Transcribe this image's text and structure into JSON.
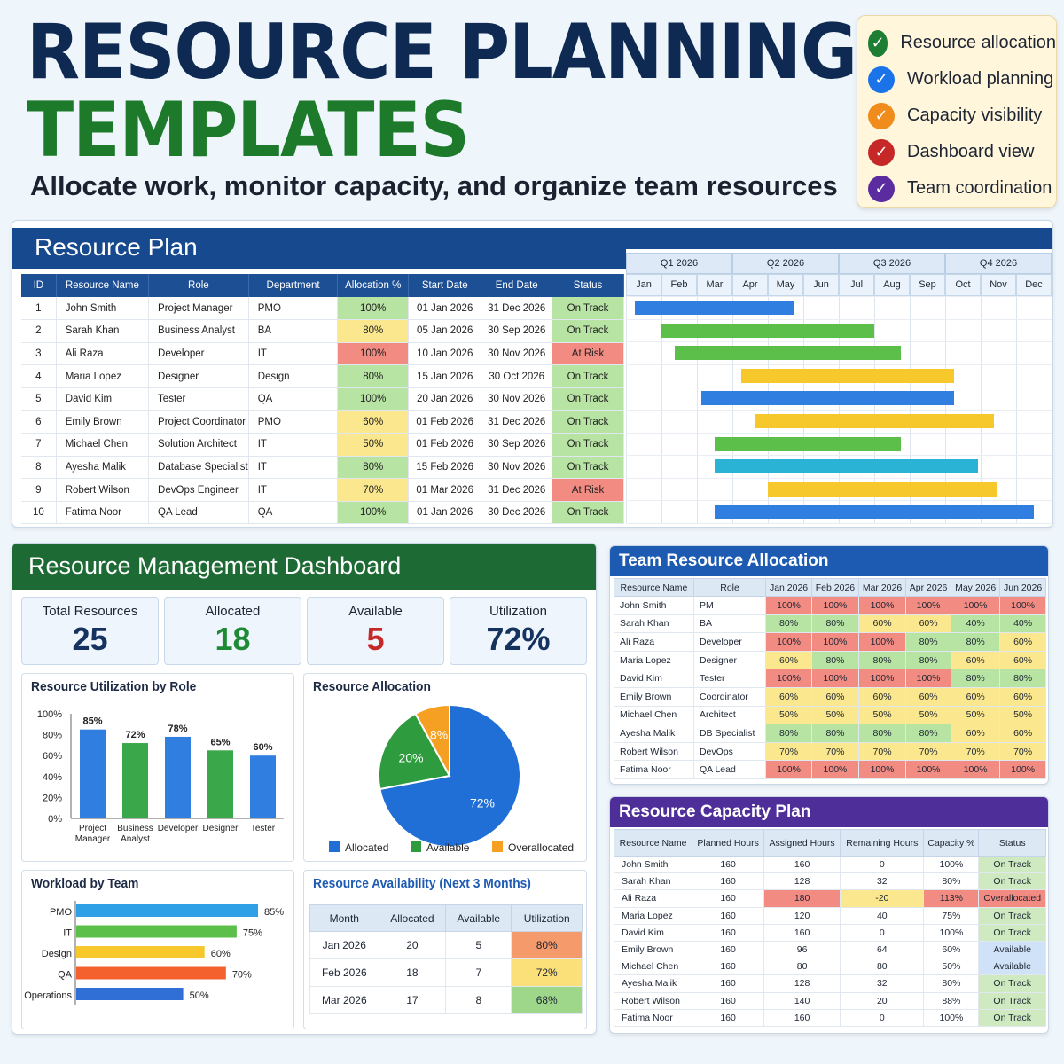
{
  "header": {
    "title1": "RESOURCE PLANNING",
    "title2": "TEMPLATES",
    "subtitle": "Allocate work, monitor capacity, and organize team resources"
  },
  "features": [
    {
      "label": "Resource allocation",
      "color": "#1e7e34"
    },
    {
      "label": "Workload planning",
      "color": "#1a73e8"
    },
    {
      "label": "Capacity visibility",
      "color": "#f08c1c"
    },
    {
      "label": "Dashboard view",
      "color": "#c62828"
    },
    {
      "label": "Team coordination",
      "color": "#5b2ca0"
    }
  ],
  "resource_plan": {
    "title": "Resource Plan",
    "columns": [
      "ID",
      "Resource Name",
      "Role",
      "Department",
      "Allocation %",
      "Start Date",
      "End Date",
      "Status"
    ],
    "rows": [
      {
        "id": "1",
        "name": "John Smith",
        "role": "Project Manager",
        "dept": "PMO",
        "alloc": "100%",
        "ac": "g",
        "start": "01 Jan 2026",
        "end": "31 Dec 2026",
        "status": "On Track",
        "sc": "g",
        "bar": {
          "s": 0,
          "e": 6,
          "color": "#2f7ee0"
        }
      },
      {
        "id": "2",
        "name": "Sarah Khan",
        "role": "Business Analyst",
        "dept": "BA",
        "alloc": "80%",
        "ac": "y",
        "start": "05 Jan 2026",
        "end": "30 Sep 2026",
        "status": "On Track",
        "sc": "g",
        "bar": {
          "s": 1,
          "e": 9,
          "color": "#5cbf4a"
        }
      },
      {
        "id": "3",
        "name": "Ali Raza",
        "role": "Developer",
        "dept": "IT",
        "alloc": "100%",
        "ac": "r",
        "start": "10 Jan 2026",
        "end": "30 Nov 2026",
        "status": "At Risk",
        "sc": "r",
        "bar": {
          "s": 1.5,
          "e": 10,
          "color": "#5cbf4a"
        }
      },
      {
        "id": "4",
        "name": "Maria Lopez",
        "role": "Designer",
        "dept": "Design",
        "alloc": "80%",
        "ac": "g",
        "start": "15 Jan 2026",
        "end": "30 Oct 2026",
        "status": "On Track",
        "sc": "g",
        "bar": {
          "s": 4,
          "e": 12,
          "color": "#f6c82c"
        }
      },
      {
        "id": "5",
        "name": "David Kim",
        "role": "Tester",
        "dept": "QA",
        "alloc": "100%",
        "ac": "g",
        "start": "20 Jan 2026",
        "end": "30 Nov 2026",
        "status": "On Track",
        "sc": "g",
        "bar": {
          "s": 2.5,
          "e": 12,
          "color": "#2f7ee0"
        }
      },
      {
        "id": "6",
        "name": "Emily Brown",
        "role": "Project Coordinator",
        "dept": "PMO",
        "alloc": "60%",
        "ac": "y",
        "start": "01 Feb 2026",
        "end": "31 Dec 2026",
        "status": "On Track",
        "sc": "g",
        "bar": {
          "s": 4.5,
          "e": 13.5,
          "color": "#f6c82c"
        }
      },
      {
        "id": "7",
        "name": "Michael Chen",
        "role": "Solution Architect",
        "dept": "IT",
        "alloc": "50%",
        "ac": "y",
        "start": "01 Feb 2026",
        "end": "30 Sep 2026",
        "status": "On Track",
        "sc": "g",
        "bar": {
          "s": 3,
          "e": 10,
          "color": "#5cbf4a"
        }
      },
      {
        "id": "8",
        "name": "Ayesha Malik",
        "role": "Database Specialist",
        "dept": "IT",
        "alloc": "80%",
        "ac": "g",
        "start": "15 Feb 2026",
        "end": "30 Nov 2026",
        "status": "On Track",
        "sc": "g",
        "bar": {
          "s": 3,
          "e": 12.9,
          "color": "#2bb3d6"
        }
      },
      {
        "id": "9",
        "name": "Robert Wilson",
        "role": "DevOps Engineer",
        "dept": "IT",
        "alloc": "70%",
        "ac": "y",
        "start": "01 Mar 2026",
        "end": "31 Dec 2026",
        "status": "At Risk",
        "sc": "r",
        "bar": {
          "s": 5,
          "e": 13.6,
          "color": "#f6c82c"
        }
      },
      {
        "id": "10",
        "name": "Fatima Noor",
        "role": "QA Lead",
        "dept": "QA",
        "alloc": "100%",
        "ac": "g",
        "start": "01 Jan 2026",
        "end": "30 Dec 2026",
        "status": "On Track",
        "sc": "g",
        "bar": {
          "s": 3,
          "e": 15,
          "color": "#2f7ee0"
        }
      }
    ],
    "quarters": [
      "Q1 2026",
      "Q2 2026",
      "Q3 2026",
      "Q4 2026"
    ],
    "months": [
      "Jan",
      "Feb",
      "Mar",
      "Apr",
      "May",
      "Jun",
      "Jul",
      "Aug",
      "Sep",
      "Oct",
      "Nov",
      "Dec"
    ]
  },
  "dashboard": {
    "title": "Resource Management Dashboard",
    "kpis": [
      {
        "label": "Total Resources",
        "value": "25",
        "color": "#16335f"
      },
      {
        "label": "Allocated",
        "value": "18",
        "color": "#1f8a35"
      },
      {
        "label": "Available",
        "value": "5",
        "color": "#c62828"
      },
      {
        "label": "Utilization",
        "value": "72%",
        "color": "#16335f"
      }
    ],
    "util_title": "Resource Utilization by Role",
    "alloc_title": "Resource Allocation",
    "workload_title": "Workload by Team",
    "avail_title": "Resource Availability (Next 3 Months)",
    "avail_columns": [
      "Month",
      "Allocated",
      "Available",
      "Utilization"
    ],
    "avail_rows": [
      {
        "month": "Jan 2026",
        "allocated": "20",
        "available": "5",
        "util": "80%",
        "color": "#f59a6a"
      },
      {
        "month": "Feb 2026",
        "allocated": "18",
        "available": "7",
        "util": "72%",
        "color": "#fbe07a"
      },
      {
        "month": "Mar 2026",
        "allocated": "17",
        "available": "8",
        "util": "68%",
        "color": "#9fd78a"
      }
    ]
  },
  "chart_data": [
    {
      "type": "bar",
      "title": "Resource Utilization by Role",
      "categories": [
        "Project Manager",
        "Business Analyst",
        "Developer",
        "Designer",
        "Tester"
      ],
      "values": [
        85,
        72,
        78,
        65,
        60
      ],
      "value_labels": [
        "85%",
        "72%",
        "78%",
        "65%",
        "60%"
      ],
      "colors": [
        "#2f7ee0",
        "#3aa84a",
        "#2f7ee0",
        "#3aa84a",
        "#2f7ee0"
      ],
      "yticks": [
        "100%",
        "80%",
        "60%",
        "40%",
        "20%",
        "0%"
      ],
      "ylim": [
        0,
        100
      ]
    },
    {
      "type": "pie",
      "title": "Resource Allocation",
      "slices": [
        {
          "label": "Allocated",
          "value": 72,
          "text": "72%",
          "color": "#1f6fd6"
        },
        {
          "label": "Available",
          "value": 20,
          "text": "20%",
          "color": "#2e9b3e"
        },
        {
          "label": "Overallocated",
          "value": 8,
          "text": "8%",
          "color": "#f5a022"
        }
      ]
    },
    {
      "type": "bar",
      "orientation": "horizontal",
      "title": "Workload by Team",
      "categories": [
        "PMO",
        "IT",
        "Design",
        "QA",
        "Operations"
      ],
      "values": [
        85,
        75,
        60,
        70,
        50
      ],
      "value_labels": [
        "85%",
        "75%",
        "60%",
        "70%",
        "50%"
      ],
      "colors": [
        "#2f9fe6",
        "#5cbf4a",
        "#f6c82c",
        "#f4612f",
        "#2f6fd6"
      ]
    }
  ],
  "team_alloc": {
    "title": "Team Resource Allocation",
    "columns": [
      "Resource Name",
      "Role",
      "Jan 2026",
      "Feb 2026",
      "Mar 2026",
      "Apr 2026",
      "May 2026",
      "Jun 2026"
    ],
    "rows": [
      {
        "name": "John Smith",
        "role": "PM",
        "vals": [
          "100%",
          "100%",
          "100%",
          "100%",
          "100%",
          "100%"
        ]
      },
      {
        "name": "Sarah Khan",
        "role": "BA",
        "vals": [
          "80%",
          "80%",
          "60%",
          "60%",
          "40%",
          "40%"
        ]
      },
      {
        "name": "Ali Raza",
        "role": "Developer",
        "vals": [
          "100%",
          "100%",
          "100%",
          "80%",
          "80%",
          "60%"
        ]
      },
      {
        "name": "Maria Lopez",
        "role": "Designer",
        "vals": [
          "60%",
          "80%",
          "80%",
          "80%",
          "60%",
          "60%"
        ]
      },
      {
        "name": "David Kim",
        "role": "Tester",
        "vals": [
          "100%",
          "100%",
          "100%",
          "100%",
          "80%",
          "80%"
        ]
      },
      {
        "name": "Emily Brown",
        "role": "Coordinator",
        "vals": [
          "60%",
          "60%",
          "60%",
          "60%",
          "60%",
          "60%"
        ]
      },
      {
        "name": "Michael Chen",
        "role": "Architect",
        "vals": [
          "50%",
          "50%",
          "50%",
          "50%",
          "50%",
          "50%"
        ]
      },
      {
        "name": "Ayesha Malik",
        "role": "DB Specialist",
        "vals": [
          "80%",
          "80%",
          "80%",
          "80%",
          "60%",
          "60%"
        ]
      },
      {
        "name": "Robert Wilson",
        "role": "DevOps",
        "vals": [
          "70%",
          "70%",
          "70%",
          "70%",
          "70%",
          "70%"
        ]
      },
      {
        "name": "Fatima Noor",
        "role": "QA Lead",
        "vals": [
          "100%",
          "100%",
          "100%",
          "100%",
          "100%",
          "100%"
        ]
      }
    ]
  },
  "capacity": {
    "title": "Resource Capacity Plan",
    "columns": [
      "Resource Name",
      "Planned Hours",
      "Assigned Hours",
      "Remaining Hours",
      "Capacity %",
      "Status"
    ],
    "rows": [
      {
        "name": "John Smith",
        "planned": "160",
        "assigned": "160",
        "remaining": "0",
        "cap": "100%",
        "status": "On Track",
        "sc": "g"
      },
      {
        "name": "Sarah Khan",
        "planned": "160",
        "assigned": "128",
        "remaining": "32",
        "cap": "80%",
        "status": "On Track",
        "sc": "g"
      },
      {
        "name": "Ali Raza",
        "planned": "160",
        "assigned": "180",
        "remaining": "-20",
        "cap": "113%",
        "status": "Overallocated",
        "sc": "r"
      },
      {
        "name": "Maria Lopez",
        "planned": "160",
        "assigned": "120",
        "remaining": "40",
        "cap": "75%",
        "status": "On Track",
        "sc": "g"
      },
      {
        "name": "David Kim",
        "planned": "160",
        "assigned": "160",
        "remaining": "0",
        "cap": "100%",
        "status": "On Track",
        "sc": "g"
      },
      {
        "name": "Emily Brown",
        "planned": "160",
        "assigned": "96",
        "remaining": "64",
        "cap": "60%",
        "status": "Available",
        "sc": "b"
      },
      {
        "name": "Michael Chen",
        "planned": "160",
        "assigned": "80",
        "remaining": "80",
        "cap": "50%",
        "status": "Available",
        "sc": "b"
      },
      {
        "name": "Ayesha Malik",
        "planned": "160",
        "assigned": "128",
        "remaining": "32",
        "cap": "80%",
        "status": "On Track",
        "sc": "g"
      },
      {
        "name": "Robert Wilson",
        "planned": "160",
        "assigned": "140",
        "remaining": "20",
        "cap": "88%",
        "status": "On Track",
        "sc": "g"
      },
      {
        "name": "Fatima Noor",
        "planned": "160",
        "assigned": "160",
        "remaining": "0",
        "cap": "100%",
        "status": "On Track",
        "sc": "g"
      }
    ]
  }
}
